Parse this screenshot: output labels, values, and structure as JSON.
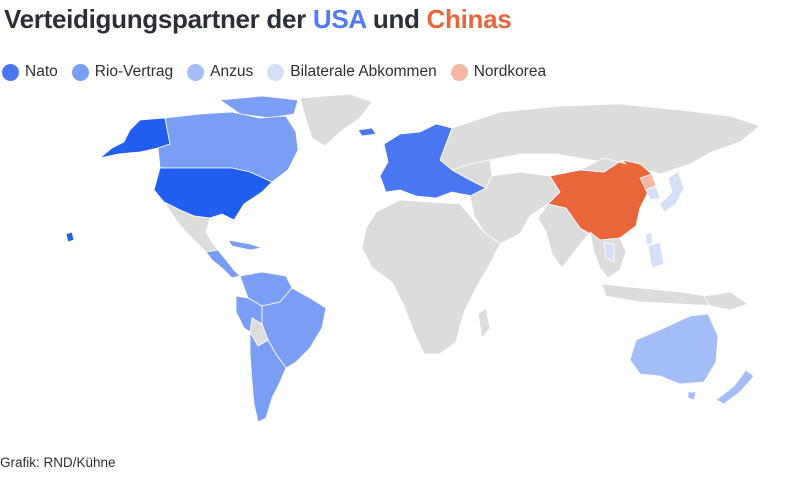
{
  "title": {
    "prefix": "Verteidigungspartner der ",
    "highlight_us": "USA",
    "middle": " und ",
    "highlight_cn": "Chinas"
  },
  "legend": [
    {
      "label": "Nato",
      "color": "#4a76f2"
    },
    {
      "label": "Rio-Vertrag",
      "color": "#7b9ef5"
    },
    {
      "label": "Anzus",
      "color": "#a4bdf7"
    },
    {
      "label": "Bilaterale Abkommen",
      "color": "#d4e0f8"
    },
    {
      "label": "Nordkorea",
      "color": "#f4b8a4"
    }
  ],
  "colors": {
    "usa": "#1f5eef",
    "nato": "#4a76f2",
    "rio": "#7b9ef5",
    "anzus": "#a4bdf7",
    "bilateral": "#d4e0f8",
    "china": "#e9663a",
    "northkorea": "#f4b8a4",
    "other": "#dcdcdc",
    "border": "#ffffff"
  },
  "source": "Grafik: RND/Kühne"
}
